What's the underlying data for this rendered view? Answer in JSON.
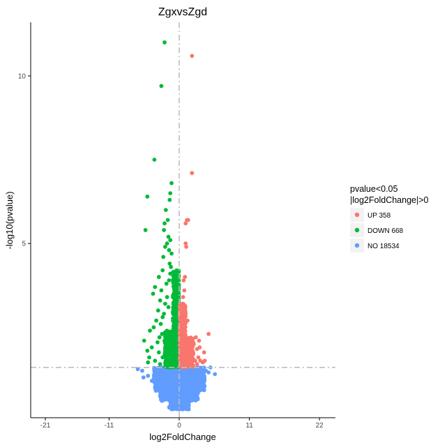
{
  "chart_data": {
    "type": "scatter",
    "title": "ZgxvsZgd",
    "xlabel": "log2FoldChange",
    "ylabel": "-log10(pvalue)",
    "xlim": [
      -23.3,
      24.5
    ],
    "ylim": [
      -0.2,
      11.6
    ],
    "xticks": [
      -21,
      -11,
      0,
      11,
      22
    ],
    "xtick_labels": [
      "-21",
      "-11",
      "0",
      "11",
      "22"
    ],
    "yticks": [
      5,
      10
    ],
    "ytick_labels": [
      "5",
      "10"
    ],
    "thresholds": {
      "x": 0,
      "y": 1.3
    },
    "legend": {
      "title_lines": [
        "pvalue<0.05",
        "|log2FoldChange|>0"
      ],
      "position": "right",
      "entries": [
        {
          "label": "UP 358",
          "color": "#F8766D"
        },
        {
          "label": "DOWN 668",
          "color": "#00BA38"
        },
        {
          "label": "NO 18534",
          "color": "#619CFF"
        }
      ]
    },
    "series": [
      {
        "name": "UP",
        "color": "#F8766D",
        "points": [
          [
            2.0,
            10.6
          ],
          [
            2.0,
            7.1
          ],
          [
            1.2,
            5.7
          ],
          [
            1.4,
            5.7
          ],
          [
            1.0,
            5.6
          ],
          [
            1.0,
            5.0
          ],
          [
            1.1,
            4.9
          ],
          [
            0.9,
            4.0
          ],
          [
            0.7,
            3.9
          ],
          [
            0.8,
            3.6
          ],
          [
            0.6,
            3.4
          ],
          [
            0.5,
            3.2
          ],
          [
            0.7,
            3.1
          ],
          [
            0.5,
            3.0
          ],
          [
            1.0,
            2.9
          ],
          [
            1.3,
            2.7
          ],
          [
            0.8,
            2.6
          ],
          [
            4.6,
            2.3
          ],
          [
            2.6,
            2.2
          ],
          [
            3.1,
            2.1
          ],
          [
            2.3,
            2.0
          ],
          [
            3.2,
            1.9
          ],
          [
            1.5,
            1.9
          ],
          [
            2.8,
            1.85
          ],
          [
            2.2,
            1.7
          ],
          [
            1.8,
            1.8
          ],
          [
            3.9,
            1.75
          ],
          [
            3.0,
            1.6
          ],
          [
            3.3,
            1.5
          ],
          [
            3.7,
            1.45
          ],
          [
            2.8,
            1.4
          ],
          [
            4.0,
            1.5
          ],
          [
            1.6,
            1.6
          ],
          [
            2.5,
            1.5
          ]
        ],
        "dense_bands": [
          {
            "x_start": 0.05,
            "x_end": 1.0,
            "y_start": 1.3,
            "y_end": 3.2
          },
          {
            "x_start": 1.0,
            "x_end": 2.2,
            "y_start": 1.3,
            "y_end": 2.2
          }
        ]
      },
      {
        "name": "DOWN",
        "color": "#00BA38",
        "points": [
          [
            -2.3,
            11.0
          ],
          [
            -2.8,
            9.7
          ],
          [
            -3.9,
            7.5
          ],
          [
            -1.2,
            6.8
          ],
          [
            -1.4,
            6.5
          ],
          [
            -5.0,
            6.4
          ],
          [
            -1.5,
            6.3
          ],
          [
            -2.1,
            6.0
          ],
          [
            -1.8,
            5.7
          ],
          [
            -2.3,
            5.6
          ],
          [
            -5.3,
            5.4
          ],
          [
            -2.4,
            5.4
          ],
          [
            -1.7,
            5.2
          ],
          [
            -1.4,
            5.1
          ],
          [
            -1.9,
            5.0
          ],
          [
            -2.2,
            4.9
          ],
          [
            -1.6,
            4.8
          ],
          [
            -1.2,
            4.7
          ],
          [
            -2.5,
            4.6
          ],
          [
            -1.5,
            4.4
          ],
          [
            -1.3,
            4.3
          ],
          [
            -2.6,
            4.2
          ],
          [
            -1.4,
            4.1
          ],
          [
            -3.2,
            4.0
          ],
          [
            -1.6,
            3.9
          ],
          [
            -2.0,
            3.8
          ],
          [
            -3.8,
            3.7
          ],
          [
            -2.8,
            3.6
          ],
          [
            -4.1,
            3.5
          ],
          [
            -1.9,
            3.4
          ],
          [
            -3.0,
            3.3
          ],
          [
            -2.2,
            3.2
          ],
          [
            -1.7,
            3.1
          ],
          [
            -3.3,
            3.0
          ],
          [
            -2.4,
            2.9
          ],
          [
            -2.6,
            2.8
          ],
          [
            -3.6,
            2.7
          ],
          [
            -2.9,
            2.6
          ],
          [
            -4.0,
            2.5
          ],
          [
            -4.6,
            2.4
          ],
          [
            -2.7,
            2.3
          ],
          [
            -3.1,
            2.2
          ],
          [
            -5.5,
            2.1
          ],
          [
            -3.4,
            2.05
          ],
          [
            -2.0,
            2.0
          ],
          [
            -4.3,
            1.9
          ],
          [
            -5.0,
            1.8
          ],
          [
            -3.2,
            1.75
          ],
          [
            -4.7,
            1.6
          ],
          [
            -2.6,
            1.6
          ],
          [
            -3.8,
            1.5
          ],
          [
            -4.9,
            1.45
          ],
          [
            -3.0,
            1.4
          ],
          [
            -2.1,
            1.5
          ]
        ],
        "dense_bands": [
          {
            "x_start": -1.0,
            "x_end": -0.05,
            "y_start": 1.3,
            "y_end": 4.2
          },
          {
            "x_start": -2.3,
            "x_end": -1.0,
            "y_start": 1.3,
            "y_end": 2.4
          }
        ]
      },
      {
        "name": "NO",
        "color": "#619CFF",
        "points": [
          [
            5.6,
            1.1
          ],
          [
            4.6,
            1.15
          ],
          [
            -6.5,
            1.25
          ],
          [
            -5.8,
            1.2
          ],
          [
            4.9,
            1.3
          ],
          [
            -4.9,
            1.05
          ],
          [
            3.9,
            0.95
          ],
          [
            -5.6,
            1.0
          ],
          [
            -4.3,
            0.9
          ],
          [
            2.9,
            0.85
          ],
          [
            -3.5,
            0.8
          ],
          [
            4.2,
            1.2
          ]
        ],
        "dense_bands": [
          {
            "x_start": -4.0,
            "x_end": 4.0,
            "y_start": 0.6,
            "y_end": 1.3
          },
          {
            "x_start": -3.0,
            "x_end": 3.0,
            "y_start": 0.3,
            "y_end": 0.6
          },
          {
            "x_start": -1.6,
            "x_end": 1.6,
            "y_start": 0.05,
            "y_end": 0.3
          }
        ]
      }
    ]
  }
}
